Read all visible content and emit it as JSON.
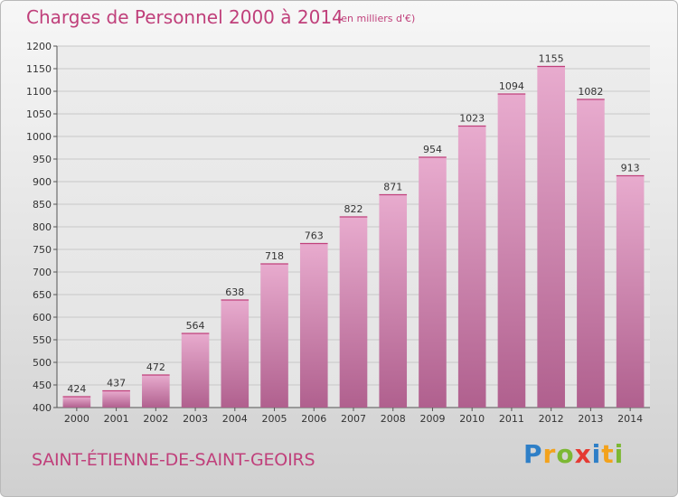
{
  "header": {
    "title": "Charges de Personnel 2000 à 2014",
    "unit": "(en milliers d'€)"
  },
  "footer": {
    "commune": "SAINT-ÉTIENNE-DE-SAINT-GEOIRS",
    "logo_letters": [
      "P",
      "r",
      "o",
      "x",
      "i",
      "t",
      "i"
    ]
  },
  "colors": {
    "accent": "#c0407b",
    "bar_light": "#e7a9cc",
    "bar_dark": "#b0608e"
  },
  "chart_data": {
    "type": "bar",
    "title": "Charges de Personnel 2000 à 2014",
    "subtitle": "(en milliers d'€)",
    "xlabel": "",
    "ylabel": "",
    "categories": [
      "2000",
      "2001",
      "2002",
      "2003",
      "2004",
      "2005",
      "2006",
      "2007",
      "2008",
      "2009",
      "2010",
      "2011",
      "2012",
      "2013",
      "2014"
    ],
    "values": [
      424,
      437,
      472,
      564,
      638,
      718,
      763,
      822,
      871,
      954,
      1023,
      1094,
      1155,
      1082,
      913
    ],
    "ylim": [
      400,
      1200
    ],
    "yticks": [
      400,
      450,
      500,
      550,
      600,
      650,
      700,
      750,
      800,
      850,
      900,
      950,
      1000,
      1050,
      1100,
      1150,
      1200
    ],
    "grid": true
  }
}
